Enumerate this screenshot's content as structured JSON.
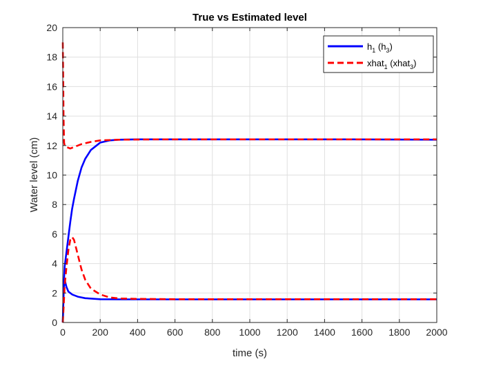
{
  "chart_data": {
    "type": "line",
    "title": "True vs Estimated level",
    "xlabel": "time (s)",
    "ylabel": "Water level (cm)",
    "xlim": [
      0,
      2000
    ],
    "ylim": [
      0,
      20
    ],
    "xticks": [
      0,
      200,
      400,
      600,
      800,
      1000,
      1200,
      1400,
      1600,
      1800,
      2000
    ],
    "yticks": [
      0,
      2,
      4,
      6,
      8,
      10,
      12,
      14,
      16,
      18,
      20
    ],
    "grid": true,
    "legend_position": "top-right",
    "series": [
      {
        "name": "h_1 (h_3)",
        "legend_main": "h",
        "legend_sub": "1",
        "legend_mid": " (h",
        "legend_sub2": "3",
        "legend_end": ")",
        "color": "#0000ff",
        "style": "solid",
        "curves": [
          [
            [
              0,
              0
            ],
            [
              5,
              2.5
            ],
            [
              10,
              3.8
            ],
            [
              20,
              4.8
            ],
            [
              30,
              5.8
            ],
            [
              40,
              6.8
            ],
            [
              50,
              7.7
            ],
            [
              60,
              8.4
            ],
            [
              80,
              9.6
            ],
            [
              100,
              10.5
            ],
            [
              120,
              11.1
            ],
            [
              150,
              11.7
            ],
            [
              180,
              12.0
            ],
            [
              200,
              12.2
            ],
            [
              250,
              12.35
            ],
            [
              300,
              12.4
            ],
            [
              400,
              12.42
            ],
            [
              600,
              12.42
            ],
            [
              1000,
              12.42
            ],
            [
              1500,
              12.42
            ],
            [
              2000,
              12.4
            ]
          ],
          [
            [
              0,
              0
            ],
            [
              5,
              2.2
            ],
            [
              10,
              2.9
            ],
            [
              20,
              2.4
            ],
            [
              30,
              2.1
            ],
            [
              50,
              1.9
            ],
            [
              80,
              1.75
            ],
            [
              120,
              1.65
            ],
            [
              200,
              1.58
            ],
            [
              300,
              1.57
            ],
            [
              500,
              1.57
            ],
            [
              1000,
              1.57
            ],
            [
              1500,
              1.57
            ],
            [
              2000,
              1.57
            ]
          ]
        ]
      },
      {
        "name": "xhat_1 (xhat_3)",
        "legend_main": "xhat",
        "legend_sub": "1",
        "legend_mid": " (xhat",
        "legend_sub2": "3",
        "legend_end": ")",
        "color": "#ff0000",
        "style": "dashed",
        "curves": [
          [
            [
              0,
              19.0
            ],
            [
              2,
              17.0
            ],
            [
              4,
              14.0
            ],
            [
              7,
              12.2
            ],
            [
              10,
              12.0
            ],
            [
              20,
              11.9
            ],
            [
              40,
              11.8
            ],
            [
              60,
              11.9
            ],
            [
              80,
              12.0
            ],
            [
              100,
              12.1
            ],
            [
              150,
              12.25
            ],
            [
              200,
              12.35
            ],
            [
              300,
              12.4
            ],
            [
              500,
              12.42
            ],
            [
              1000,
              12.42
            ],
            [
              1500,
              12.42
            ],
            [
              2000,
              12.42
            ]
          ],
          [
            [
              0,
              0
            ],
            [
              5,
              1.2
            ],
            [
              10,
              2.5
            ],
            [
              20,
              3.8
            ],
            [
              30,
              4.9
            ],
            [
              40,
              5.6
            ],
            [
              50,
              5.8
            ],
            [
              60,
              5.6
            ],
            [
              80,
              4.6
            ],
            [
              100,
              3.6
            ],
            [
              120,
              2.9
            ],
            [
              150,
              2.3
            ],
            [
              200,
              1.9
            ],
            [
              250,
              1.7
            ],
            [
              300,
              1.63
            ],
            [
              400,
              1.6
            ],
            [
              600,
              1.58
            ],
            [
              1000,
              1.58
            ],
            [
              1500,
              1.58
            ],
            [
              2000,
              1.58
            ]
          ]
        ]
      }
    ]
  }
}
